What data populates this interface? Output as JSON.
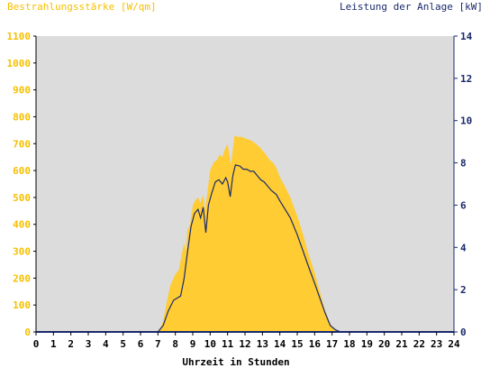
{
  "chart_data": {
    "type": "area",
    "title_left": "Bestrahlungsstärke [W/qm]",
    "title_right": "Leistung der Anlage [kW]",
    "xlabel": "Uhrzeit in Stunden",
    "xlim": [
      0,
      24
    ],
    "x_ticks": [
      "0",
      "1",
      "2",
      "3",
      "4",
      "5",
      "6",
      "7",
      "8",
      "9",
      "10",
      "11",
      "12",
      "13",
      "14",
      "15",
      "16",
      "17",
      "18",
      "19",
      "20",
      "21",
      "22",
      "23",
      "24"
    ],
    "y_left": {
      "lim": [
        0,
        1100
      ],
      "ticks": [
        "0",
        "100",
        "200",
        "300",
        "400",
        "500",
        "600",
        "700",
        "800",
        "900",
        "1000",
        "1100"
      ],
      "color": "#f5c000"
    },
    "y_right": {
      "lim": [
        0,
        14
      ],
      "ticks": [
        "0",
        "2",
        "4",
        "6",
        "8",
        "10",
        "12",
        "14"
      ],
      "color": "#1a2a6c"
    },
    "plot_background": "#dcdcdc",
    "series": [
      {
        "name": "Bestrahlungsstärke [W/qm]",
        "axis": "left",
        "kind": "area",
        "color": "#ffcc33",
        "points": [
          [
            0,
            0
          ],
          [
            6.9,
            0
          ],
          [
            7.1,
            10
          ],
          [
            7.3,
            40
          ],
          [
            7.5,
            110
          ],
          [
            7.7,
            170
          ],
          [
            7.9,
            200
          ],
          [
            8.0,
            215
          ],
          [
            8.2,
            230
          ],
          [
            8.35,
            280
          ],
          [
            8.5,
            330
          ],
          [
            8.6,
            300
          ],
          [
            8.7,
            380
          ],
          [
            8.85,
            400
          ],
          [
            9.0,
            470
          ],
          [
            9.15,
            490
          ],
          [
            9.3,
            500
          ],
          [
            9.45,
            480
          ],
          [
            9.6,
            510
          ],
          [
            9.7,
            450
          ],
          [
            9.85,
            520
          ],
          [
            10.0,
            600
          ],
          [
            10.2,
            630
          ],
          [
            10.4,
            640
          ],
          [
            10.55,
            660
          ],
          [
            10.7,
            650
          ],
          [
            10.85,
            680
          ],
          [
            11.0,
            700
          ],
          [
            11.1,
            660
          ],
          [
            11.2,
            620
          ],
          [
            11.3,
            680
          ],
          [
            11.4,
            730
          ],
          [
            11.6,
            725
          ],
          [
            11.8,
            725
          ],
          [
            12.0,
            720
          ],
          [
            12.2,
            715
          ],
          [
            12.4,
            710
          ],
          [
            12.6,
            700
          ],
          [
            12.8,
            690
          ],
          [
            13.0,
            675
          ],
          [
            13.2,
            660
          ],
          [
            13.4,
            640
          ],
          [
            13.6,
            630
          ],
          [
            13.8,
            610
          ],
          [
            14.0,
            575
          ],
          [
            14.3,
            540
          ],
          [
            14.6,
            500
          ],
          [
            15.0,
            430
          ],
          [
            15.3,
            370
          ],
          [
            15.6,
            300
          ],
          [
            16.0,
            220
          ],
          [
            16.3,
            150
          ],
          [
            16.6,
            80
          ],
          [
            16.9,
            30
          ],
          [
            17.2,
            8
          ],
          [
            17.5,
            0
          ],
          [
            24,
            0
          ]
        ]
      },
      {
        "name": "Leistung der Anlage [kW]",
        "axis": "right",
        "kind": "line",
        "color": "#1a2a6c",
        "points": [
          [
            0,
            0
          ],
          [
            7.0,
            0
          ],
          [
            7.3,
            0.3
          ],
          [
            7.6,
            1.0
          ],
          [
            7.9,
            1.5
          ],
          [
            8.1,
            1.6
          ],
          [
            8.3,
            1.7
          ],
          [
            8.5,
            2.5
          ],
          [
            8.7,
            3.8
          ],
          [
            8.9,
            5.0
          ],
          [
            9.1,
            5.6
          ],
          [
            9.3,
            5.8
          ],
          [
            9.45,
            5.4
          ],
          [
            9.6,
            5.9
          ],
          [
            9.75,
            4.7
          ],
          [
            9.9,
            6.0
          ],
          [
            10.1,
            6.6
          ],
          [
            10.3,
            7.1
          ],
          [
            10.5,
            7.2
          ],
          [
            10.7,
            7.0
          ],
          [
            10.9,
            7.3
          ],
          [
            11.0,
            7.1
          ],
          [
            11.15,
            6.4
          ],
          [
            11.3,
            7.4
          ],
          [
            11.45,
            7.9
          ],
          [
            11.7,
            7.85
          ],
          [
            11.9,
            7.7
          ],
          [
            12.1,
            7.7
          ],
          [
            12.3,
            7.6
          ],
          [
            12.5,
            7.6
          ],
          [
            12.7,
            7.4
          ],
          [
            12.9,
            7.2
          ],
          [
            13.1,
            7.1
          ],
          [
            13.3,
            6.9
          ],
          [
            13.5,
            6.7
          ],
          [
            13.8,
            6.5
          ],
          [
            14.0,
            6.2
          ],
          [
            14.3,
            5.8
          ],
          [
            14.6,
            5.4
          ],
          [
            15.0,
            4.6
          ],
          [
            15.3,
            3.9
          ],
          [
            15.6,
            3.2
          ],
          [
            16.0,
            2.3
          ],
          [
            16.3,
            1.6
          ],
          [
            16.6,
            0.9
          ],
          [
            16.9,
            0.3
          ],
          [
            17.2,
            0.1
          ],
          [
            17.5,
            0
          ],
          [
            24,
            0
          ]
        ]
      }
    ]
  }
}
